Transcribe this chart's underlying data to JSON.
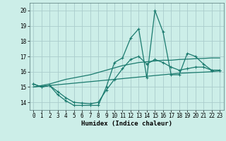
{
  "xlabel": "Humidex (Indice chaleur)",
  "bg_color": "#cceee8",
  "grid_color": "#aacccc",
  "line_color": "#1a7a6e",
  "x": [
    0,
    1,
    2,
    3,
    4,
    5,
    6,
    7,
    8,
    9,
    10,
    11,
    12,
    13,
    14,
    15,
    16,
    17,
    18,
    19,
    20,
    21,
    22,
    23
  ],
  "line_main": [
    15.2,
    15.0,
    15.1,
    14.5,
    14.1,
    13.8,
    13.8,
    13.8,
    13.8,
    15.0,
    16.6,
    16.9,
    18.2,
    18.8,
    15.6,
    20.0,
    18.6,
    15.8,
    15.8,
    17.2,
    17.0,
    16.5,
    16.1,
    16.1
  ],
  "line_trend_low": [
    15.0,
    15.05,
    15.1,
    15.15,
    15.2,
    15.25,
    15.3,
    15.35,
    15.4,
    15.45,
    15.5,
    15.55,
    15.6,
    15.65,
    15.7,
    15.75,
    15.8,
    15.85,
    15.9,
    15.92,
    15.95,
    15.97,
    16.0,
    16.05
  ],
  "line_trend_high": [
    15.0,
    15.1,
    15.2,
    15.35,
    15.5,
    15.6,
    15.7,
    15.8,
    15.95,
    16.1,
    16.25,
    16.4,
    16.5,
    16.6,
    16.65,
    16.7,
    16.75,
    16.75,
    16.8,
    16.82,
    16.85,
    16.87,
    16.9,
    16.9
  ],
  "line_smooth": [
    15.2,
    15.0,
    15.1,
    14.7,
    14.3,
    14.0,
    13.95,
    13.9,
    14.0,
    14.8,
    15.5,
    16.2,
    16.8,
    17.0,
    16.5,
    16.8,
    16.6,
    16.3,
    16.1,
    16.2,
    16.3,
    16.3,
    16.1,
    16.1
  ],
  "ylim": [
    13.5,
    20.5
  ],
  "xlim": [
    -0.5,
    23.5
  ],
  "yticks": [
    14,
    15,
    16,
    17,
    18,
    19,
    20
  ],
  "xticks": [
    0,
    1,
    2,
    3,
    4,
    5,
    6,
    7,
    8,
    9,
    10,
    11,
    12,
    13,
    14,
    15,
    16,
    17,
    18,
    19,
    20,
    21,
    22,
    23
  ],
  "xlabel_fontsize": 6.5,
  "tick_fontsize": 5.5
}
